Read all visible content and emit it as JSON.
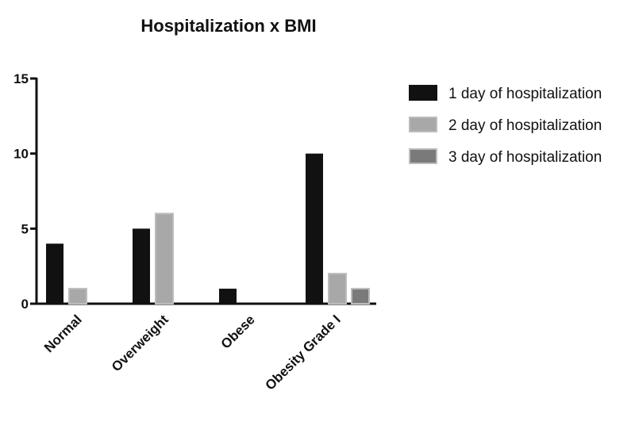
{
  "chart_data": {
    "type": "bar",
    "title": "Hospitalization x BMI",
    "categories": [
      "Normal",
      "Overweight",
      "Obese",
      "Obesity Grade I"
    ],
    "series": [
      {
        "name": "1 day of hospitalization",
        "values": [
          4,
          5,
          1,
          10
        ],
        "color": "#111111"
      },
      {
        "name": "2 day of hospitalization",
        "values": [
          1,
          6,
          0,
          2
        ],
        "color": "#a8a8a8"
      },
      {
        "name": "3 day of hospitalization",
        "values": [
          0,
          0,
          0,
          1
        ],
        "color": "#7a7a7a"
      }
    ],
    "ylim": [
      0,
      15
    ],
    "yticks": [
      0,
      5,
      10,
      15
    ],
    "xlabel": "",
    "ylabel": "",
    "grid": false,
    "legend_position": "right"
  }
}
